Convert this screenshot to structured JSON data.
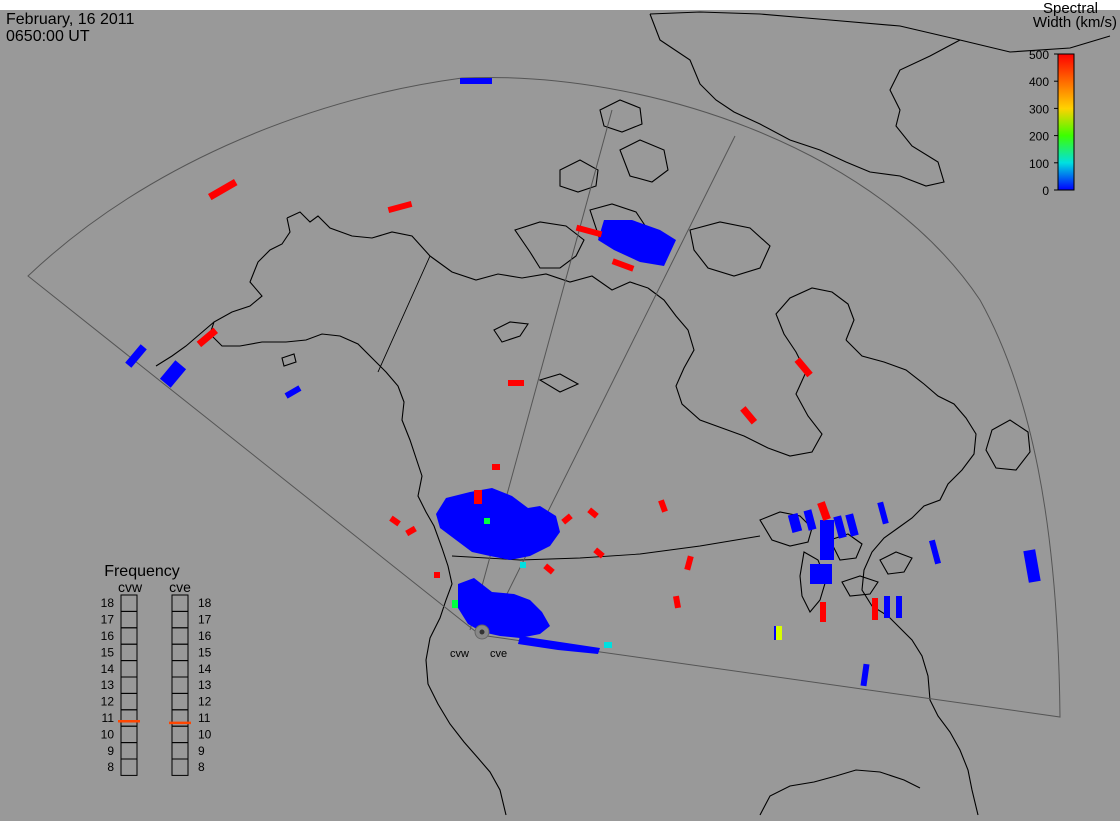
{
  "header": {
    "date": "February, 16 2011",
    "time": "0650:00 UT"
  },
  "colorbar": {
    "title_line1": "Spectral",
    "title_line2": "Width (km/s)",
    "ticks": [
      "500",
      "400",
      "300",
      "200",
      "100",
      "0"
    ],
    "colors": [
      "#ff0000",
      "#ff6a00",
      "#ffd200",
      "#3cff00",
      "#00e0e0",
      "#0000ff"
    ]
  },
  "frequency_panel": {
    "title": "Frequency",
    "radar_left": "cvw",
    "radar_right": "cve",
    "levels": [
      "18",
      "17",
      "16",
      "15",
      "14",
      "13",
      "12",
      "11",
      "10",
      "9",
      "8"
    ],
    "cvw_value": 10.8,
    "cve_value": 10.7,
    "marker_color": "#ff4500"
  },
  "radar_sites": [
    {
      "label": "cvw"
    },
    {
      "label": "cve"
    }
  ],
  "colors": {
    "background": "#999999",
    "coastline": "#000000",
    "fov": "#555555",
    "echo_low": "#0000ff",
    "echo_high": "#ff0000",
    "echo_mid": "#00e0e0"
  }
}
